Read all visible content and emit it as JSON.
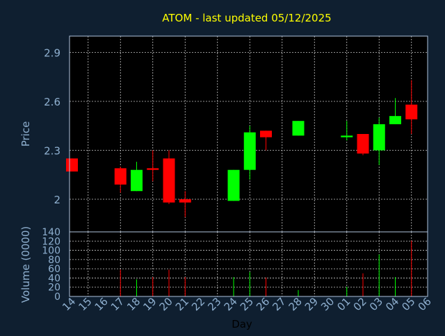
{
  "title": "ATOM - last updated 05/12/2025",
  "colors": {
    "background": "#0f1f30",
    "plot_background": "#000000",
    "title": "#ffff00",
    "axis_text": "#8fb0d0",
    "frame": "#b0c4de",
    "grid": "#c8c8c8",
    "up": "#00ff00",
    "down": "#ff0000"
  },
  "chart_data": [
    {
      "type": "candlestick",
      "ylabel": "Price",
      "ylim": [
        1.8,
        3.0
      ],
      "yticks": [
        2,
        2.3,
        2.6,
        2.9
      ],
      "ytick_labels": [
        "2",
        "2.3",
        "2.6",
        "2.9"
      ],
      "grid": true,
      "candles": [
        {
          "x": "14",
          "open": 2.25,
          "high": 2.25,
          "low": 2.17,
          "close": 2.17
        },
        {
          "x": "17",
          "open": 2.19,
          "high": 2.2,
          "low": 2.04,
          "close": 2.09
        },
        {
          "x": "18",
          "open": 2.05,
          "high": 2.23,
          "low": 2.05,
          "close": 2.18
        },
        {
          "x": "19",
          "open": 2.19,
          "high": 2.3,
          "low": 2.11,
          "close": 2.18
        },
        {
          "x": "20",
          "open": 2.25,
          "high": 2.3,
          "low": 1.97,
          "close": 1.98
        },
        {
          "x": "21",
          "open": 2.0,
          "high": 2.05,
          "low": 1.89,
          "close": 1.98
        },
        {
          "x": "24",
          "open": 1.99,
          "high": 2.18,
          "low": 1.99,
          "close": 2.18
        },
        {
          "x": "25",
          "open": 2.18,
          "high": 2.45,
          "low": 2.12,
          "close": 2.41
        },
        {
          "x": "26",
          "open": 2.42,
          "high": 2.42,
          "low": 2.3,
          "close": 2.38
        },
        {
          "x": "28",
          "open": 2.39,
          "high": 2.48,
          "low": 2.39,
          "close": 2.48
        },
        {
          "x": "01",
          "open": 2.38,
          "high": 2.48,
          "low": 2.36,
          "close": 2.39
        },
        {
          "x": "02",
          "open": 2.4,
          "high": 2.4,
          "low": 2.27,
          "close": 2.28
        },
        {
          "x": "03",
          "open": 2.3,
          "high": 2.5,
          "low": 2.21,
          "close": 2.46
        },
        {
          "x": "04",
          "open": 2.46,
          "high": 2.62,
          "low": 2.46,
          "close": 2.51
        },
        {
          "x": "05",
          "open": 2.58,
          "high": 2.73,
          "low": 2.4,
          "close": 2.49
        }
      ]
    },
    {
      "type": "bar",
      "ylabel": "Volume (0000)",
      "ylim": [
        0,
        140
      ],
      "yticks": [
        0,
        20,
        40,
        60,
        80,
        100,
        120,
        140
      ],
      "ytick_labels": [
        "0",
        "20",
        "40",
        "60",
        "80",
        "100",
        "120",
        "140"
      ],
      "xlabel": "Day",
      "categories": [
        "14",
        "15",
        "16",
        "17",
        "18",
        "19",
        "20",
        "21",
        "22",
        "23",
        "24",
        "25",
        "26",
        "27",
        "28",
        "29",
        "30",
        "01",
        "02",
        "03",
        "04",
        "05",
        "06"
      ],
      "grid": true,
      "bars": [
        {
          "x": "17",
          "value": 58,
          "direction": "down"
        },
        {
          "x": "18",
          "value": 37,
          "direction": "up"
        },
        {
          "x": "19",
          "value": 42,
          "direction": "down"
        },
        {
          "x": "20",
          "value": 58,
          "direction": "down"
        },
        {
          "x": "21",
          "value": 42,
          "direction": "down"
        },
        {
          "x": "24",
          "value": 42,
          "direction": "up"
        },
        {
          "x": "25",
          "value": 53,
          "direction": "up"
        },
        {
          "x": "26",
          "value": 41,
          "direction": "down"
        },
        {
          "x": "28",
          "value": 14,
          "direction": "up"
        },
        {
          "x": "01",
          "value": 21,
          "direction": "up"
        },
        {
          "x": "02",
          "value": 50,
          "direction": "down"
        },
        {
          "x": "03",
          "value": 91,
          "direction": "up"
        },
        {
          "x": "04",
          "value": 42,
          "direction": "up"
        },
        {
          "x": "05",
          "value": 121,
          "direction": "down"
        }
      ]
    }
  ]
}
